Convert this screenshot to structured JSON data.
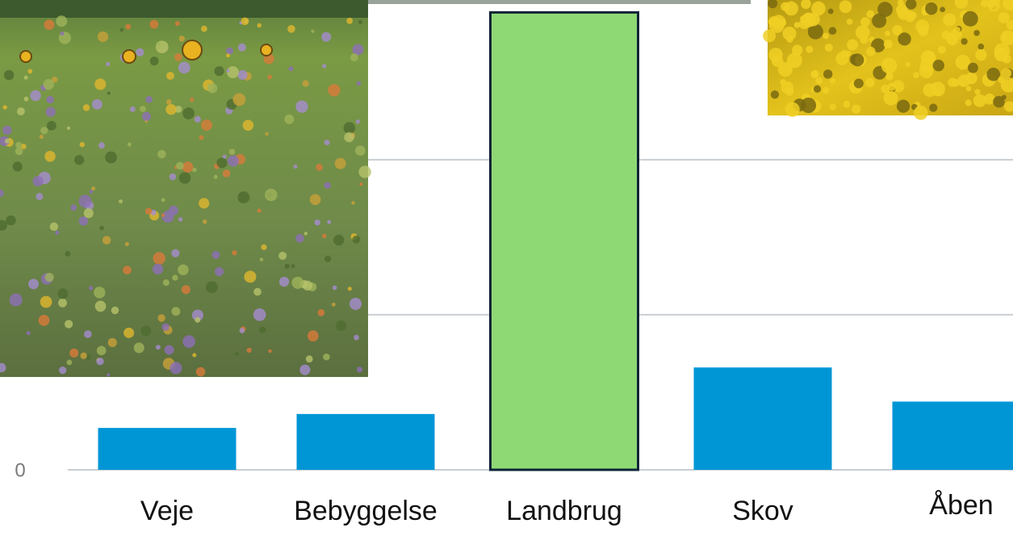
{
  "chart_data": {
    "type": "bar",
    "categories": [
      "Veje",
      "Bebyggelse",
      "Landbrug",
      "Skov",
      "Åben"
    ],
    "values": [
      0.27,
      0.36,
      2.95,
      0.66,
      0.44
    ],
    "colors": [
      "#0096d6",
      "#0096d6",
      "#8fd975",
      "#0096d6",
      "#0096d6"
    ],
    "edgecolors": [
      null,
      null,
      "#0d2436",
      null,
      null
    ],
    "ylim": [
      0,
      3.03
    ],
    "yticks": [
      0
    ],
    "gridlines": [
      1,
      2
    ],
    "grid": true
  }
}
